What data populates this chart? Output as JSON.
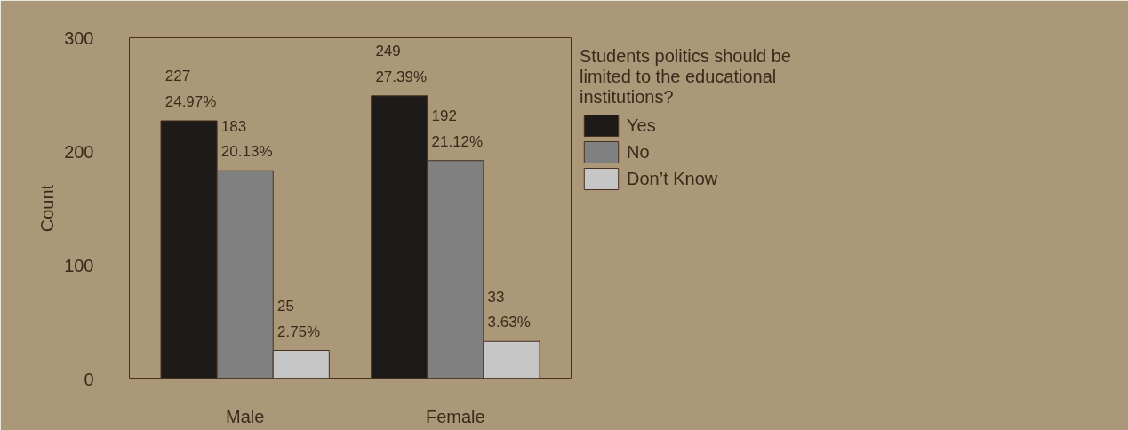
{
  "chart_data": {
    "type": "bar",
    "ylabel": "Count",
    "legend_title": "Students politics should be limited to the educational institutions?",
    "categories": [
      "Male",
      "Female"
    ],
    "series": [
      {
        "name": "Yes",
        "color": "#1e1a18",
        "values": [
          227,
          249
        ],
        "value_labels": [
          "227\n24.97%",
          "249\n27.39%"
        ]
      },
      {
        "name": "No",
        "color": "#808080",
        "values": [
          183,
          192
        ],
        "value_labels": [
          "183\n20.13%",
          "192\n21.12%"
        ]
      },
      {
        "name": "Don’t Know",
        "color": "#c6c6c6",
        "values": [
          25,
          33
        ],
        "value_labels": [
          "25\n2.75%",
          "33\n3.63%"
        ]
      }
    ],
    "ylim": [
      0,
      300
    ],
    "yticks": [
      0,
      100,
      200,
      300
    ],
    "grid": false,
    "legend": "right"
  }
}
